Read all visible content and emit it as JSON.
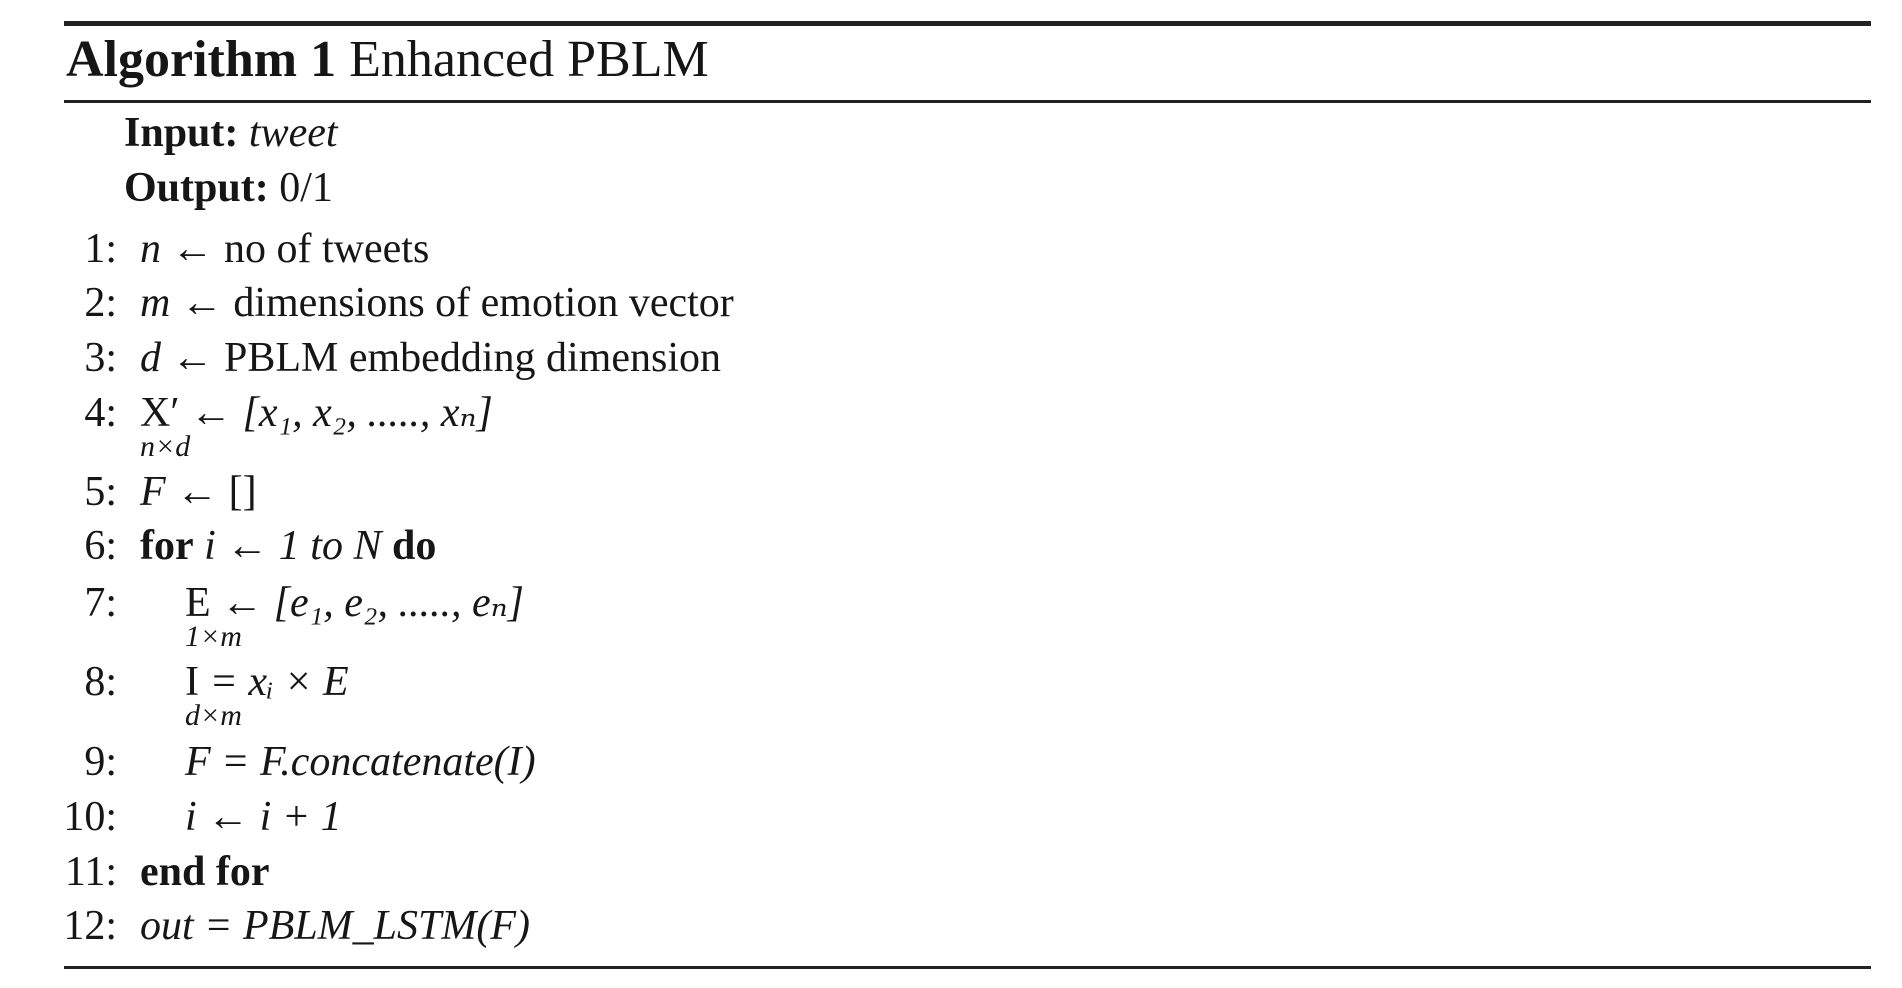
{
  "algorithm": {
    "label": "Algorithm 1",
    "name": "Enhanced PBLM",
    "input_label": "Input:",
    "input_value": "tweet",
    "output_label": "Output:",
    "output_value": "0/1",
    "lines": [
      {
        "no": "1:",
        "var": "n",
        "arrow": "←",
        "text": "no of tweets"
      },
      {
        "no": "2:",
        "var": "m",
        "arrow": "←",
        "text": "dimensions of emotion vector"
      },
      {
        "no": "3:",
        "var": "d",
        "arrow": "←",
        "text": "PBLM embedding dimension"
      },
      {
        "no": "4:",
        "base": "X′",
        "under": "n×d",
        "rhs": "← [x₁, x₂, ....., xₙ]"
      },
      {
        "no": "5:",
        "var": "F",
        "rhs": "← []"
      },
      {
        "no": "6:",
        "kw1": "for",
        "mid": "i ← 1 to N",
        "kw2": "do"
      },
      {
        "no": "7:",
        "base": "E",
        "under": "1×m",
        "rhs": "← [e₁, e₂, ....., eₙ]"
      },
      {
        "no": "8:",
        "base": "I",
        "under": "d×m",
        "rhs": "= xᵢ × E"
      },
      {
        "no": "9:",
        "text": "F = F.concatenate(I)"
      },
      {
        "no": "10:",
        "text": "i ← i + 1"
      },
      {
        "no": "11:",
        "kw1": "end for"
      },
      {
        "no": "12:",
        "text": "out = PBLM_LSTM(F)"
      }
    ]
  }
}
